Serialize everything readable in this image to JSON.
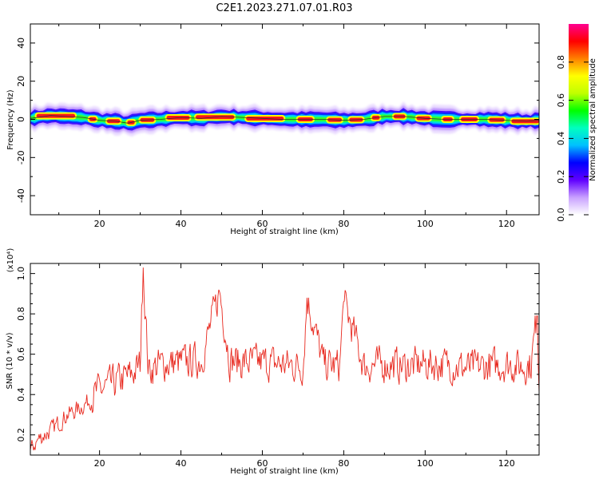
{
  "title": "C2E1.2023.271.07.01.R03",
  "chart_data": [
    {
      "type": "heatmap",
      "xlabel": "Height of straight line (km)",
      "ylabel": "Frequency (Hz)",
      "xlim": [
        3,
        128
      ],
      "ylim": [
        -50,
        50
      ],
      "xticks": [
        20,
        40,
        60,
        80,
        100,
        120
      ],
      "yticks": [
        -40,
        -20,
        0,
        20,
        40
      ],
      "grid": false,
      "colorbar": {
        "label": "Normalized spectral amplitude",
        "range": [
          0,
          1
        ],
        "ticks": [
          "0.0",
          "0.2",
          "0.4",
          "0.6",
          "0.8"
        ],
        "colormap": [
          "#ffffff",
          "#c8a0ff",
          "#6000ff",
          "#0000ff",
          "#00c0ff",
          "#00ffc0",
          "#00ff00",
          "#c0ff00",
          "#ffff00",
          "#ff8000",
          "#ff0000",
          "#ff0090"
        ]
      },
      "center_line": {
        "x": [
          3,
          8,
          12,
          16,
          20,
          24,
          27,
          30,
          35,
          40,
          45,
          50,
          55,
          60,
          65,
          70,
          75,
          80,
          85,
          90,
          95,
          100,
          105,
          110,
          115,
          120,
          125,
          128
        ],
        "y": [
          0.5,
          2,
          1.5,
          1,
          -0.5,
          -1,
          -2,
          -0.5,
          0,
          1,
          0.5,
          1.5,
          1,
          0.5,
          0,
          0,
          0,
          -0.5,
          0,
          1.5,
          1.5,
          0.5,
          0,
          0,
          0,
          -0.5,
          -1,
          -0.5
        ]
      },
      "band_halfwidth_hz": 3
    },
    {
      "type": "line",
      "xlabel": "Height of straight line (km)",
      "ylabel": "SNR (10 * v/v)",
      "y_multiplier": "(x10⁴)",
      "xlim": [
        3,
        128
      ],
      "ylim": [
        0.1,
        1.05
      ],
      "xticks": [
        20,
        40,
        60,
        80,
        100,
        120
      ],
      "yticks": [
        "0.2",
        "0.4",
        "0.6",
        "0.8",
        "1.0"
      ],
      "grid": false,
      "color": "#e8281e",
      "anchors": {
        "x": [
          3,
          5,
          8,
          10,
          12,
          15,
          18,
          20,
          23,
          26,
          28,
          30,
          30.7,
          32,
          35,
          40,
          45,
          49.5,
          52,
          55,
          60,
          65,
          70,
          71,
          75,
          79,
          80,
          85,
          90,
          95,
          100,
          105,
          108,
          110,
          115,
          120,
          124,
          126,
          127.5,
          128
        ],
        "y": [
          0.12,
          0.18,
          0.22,
          0.26,
          0.3,
          0.33,
          0.38,
          0.42,
          0.45,
          0.48,
          0.5,
          0.55,
          1.03,
          0.52,
          0.55,
          0.56,
          0.57,
          0.91,
          0.57,
          0.56,
          0.56,
          0.55,
          0.54,
          0.88,
          0.55,
          0.54,
          0.86,
          0.54,
          0.55,
          0.54,
          0.55,
          0.55,
          0.54,
          0.53,
          0.54,
          0.55,
          0.54,
          0.55,
          0.79,
          0.45
        ]
      },
      "noise_amplitude": 0.12
    }
  ]
}
